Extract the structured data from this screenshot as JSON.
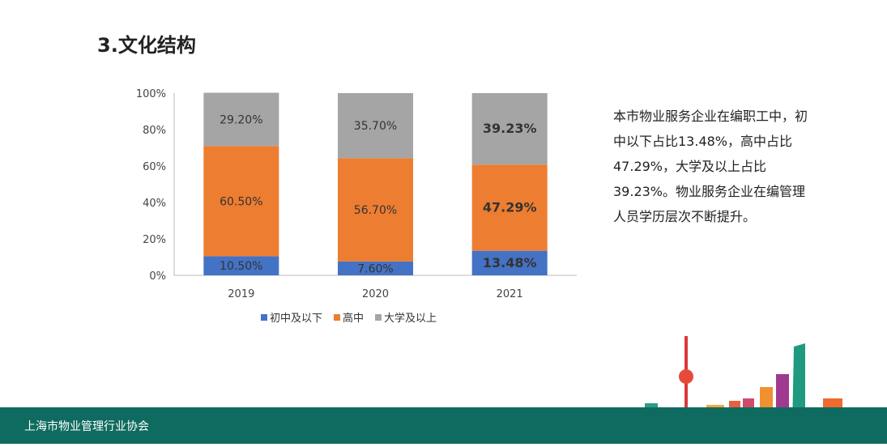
{
  "page_title": "3.文化结构",
  "description": "本市物业服务企业在编职工中，初中以下占比13.48%，高中占比47.29%，大学及以上占比39.23%。物业服务企业在编管理人员学历层次不断提升。",
  "footer": {
    "organization": "上海市物业管理行业协会",
    "band_color": "#0f6b5f"
  },
  "chart_data": {
    "type": "bar",
    "stacked": true,
    "categories": [
      "2019",
      "2020",
      "2021"
    ],
    "series": [
      {
        "name": "初中及以下",
        "color": "#4472c4",
        "values": [
          10.5,
          7.6,
          13.48
        ],
        "labels": [
          "10.50%",
          "7.60%",
          "13.48%"
        ]
      },
      {
        "name": "高中",
        "color": "#ed7d31",
        "values": [
          60.5,
          56.7,
          47.29
        ],
        "labels": [
          "60.50%",
          "56.70%",
          "47.29%"
        ]
      },
      {
        "name": "大学及以上",
        "color": "#a5a5a5",
        "values": [
          29.2,
          35.7,
          39.23
        ],
        "labels": [
          "29.20%",
          "35.70%",
          "39.23%"
        ]
      }
    ],
    "bold_category": "2021",
    "yticks": [
      "0%",
      "20%",
      "40%",
      "60%",
      "80%",
      "100%"
    ],
    "ylim": [
      0,
      100
    ],
    "legend": "bottom",
    "grid": false
  }
}
